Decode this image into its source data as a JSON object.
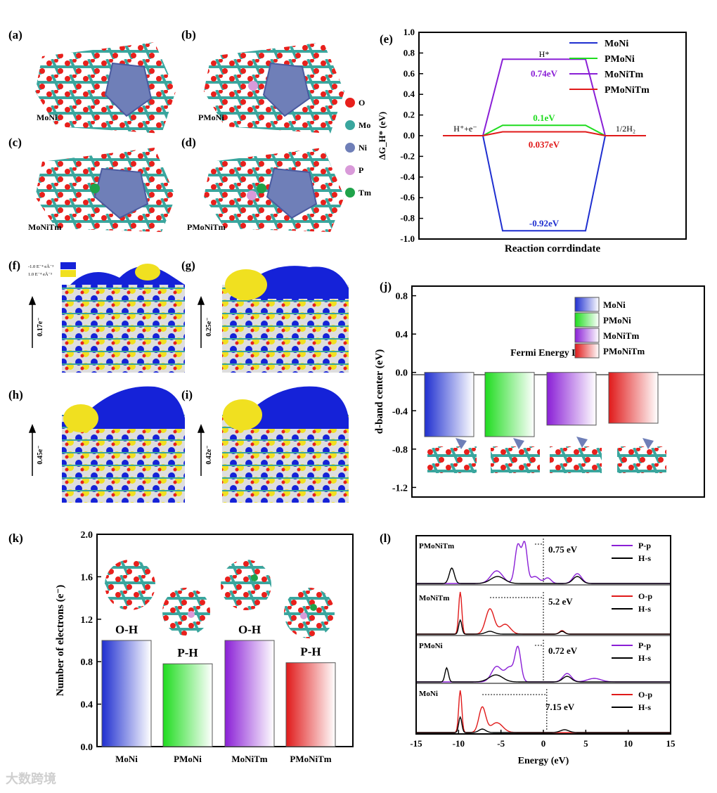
{
  "panels": {
    "a": {
      "label": "(a)",
      "name": "MoNi"
    },
    "b": {
      "label": "(b)",
      "name": "PMoNi"
    },
    "c": {
      "label": "(c)",
      "name": "MoNiTm"
    },
    "d": {
      "label": "(d)",
      "name": "PMoNiTm"
    },
    "f": {
      "label": "(f)",
      "charge": "0.17e⁻"
    },
    "g": {
      "label": "(g)",
      "charge": "0.25e⁻"
    },
    "h": {
      "label": "(h)",
      "charge": "0.45e⁻"
    },
    "i": {
      "label": "(i)",
      "charge": "0.42e⁻"
    }
  },
  "f_legend": {
    "neg": "-1.0 E⁻⁴ eÅ⁻³",
    "pos": "1.0 E⁻⁴ eÅ⁻³"
  },
  "atom_legend": [
    {
      "label": "O",
      "color": "#e8201c"
    },
    {
      "label": "Mo",
      "color": "#3aa69e"
    },
    {
      "label": "Ni",
      "color": "#6f7fb8"
    },
    {
      "label": "P",
      "color": "#d99ad9"
    },
    {
      "label": "Tm",
      "color": "#1fa34a"
    }
  ],
  "colors": {
    "MoNi": "#1f2fd0",
    "PMoNi": "#1fdc1f",
    "MoNiTm": "#8a1fd6",
    "PMoNiTm": "#e01a1a"
  },
  "chart_data": [
    {
      "panel": "(e)",
      "type": "line",
      "xlabel": "Reaction corrdindate",
      "ylabel": "ΔG_H* (eV)",
      "ylim": [
        -1.0,
        1.0
      ],
      "yticks": [
        "1.0",
        "0.8",
        "0.6",
        "0.4",
        "0.2",
        "0.0",
        "-0.2",
        "-0.4",
        "-0.6",
        "-0.8",
        "-1.0"
      ],
      "state_labels": {
        "left": "H⁺+e⁻",
        "mid": "H*",
        "right": "1/2H₂"
      },
      "series": [
        {
          "name": "MoNi",
          "values": [
            0,
            -0.92,
            0
          ],
          "label": "-0.92eV"
        },
        {
          "name": "PMoNi",
          "values": [
            0,
            0.1,
            0
          ],
          "label": "0.1eV"
        },
        {
          "name": "MoNiTm",
          "values": [
            0,
            0.74,
            0
          ],
          "label": "0.74eV"
        },
        {
          "name": "PMoNiTm",
          "values": [
            0,
            0.037,
            0
          ],
          "label": "0.037eV"
        }
      ]
    },
    {
      "panel": "(j)",
      "type": "bar",
      "ylabel": "d-band center (eV)",
      "ylim": [
        -1.3,
        0.9
      ],
      "yticks": [
        "0.8",
        "0.4",
        "0.0",
        "-0.4",
        "-0.8",
        "-1.2"
      ],
      "annotation": "Fermi Energy Level",
      "categories": [
        "MoNi",
        "PMoNi",
        "MoNiTm",
        "PMoNiTm"
      ],
      "values": [
        -0.67,
        -0.67,
        -0.55,
        -0.53
      ]
    },
    {
      "panel": "(k)",
      "type": "bar",
      "ylabel": "Number of electrons (e⁻)",
      "ylim": [
        0,
        2.0
      ],
      "yticks": [
        "0.0",
        "0.4",
        "0.8",
        "1.2",
        "1.6",
        "2.0"
      ],
      "categories": [
        "MoNi",
        "PMoNi",
        "MoNiTm",
        "PMoNiTm"
      ],
      "bond_labels": [
        "O-H",
        "P-H",
        "O-H",
        "P-H"
      ],
      "values": [
        1.0,
        0.78,
        1.0,
        0.79
      ]
    },
    {
      "panel": "(l)",
      "type": "line",
      "xlabel": "Energy (eV)",
      "xlim": [
        -15,
        15
      ],
      "xticks": [
        "-15",
        "-10",
        "-5",
        "0",
        "5",
        "10",
        "15"
      ],
      "subplots": [
        {
          "name": "PMoNiTm",
          "gap": "0.75 eV",
          "legend": [
            "P-p",
            "H-s"
          ]
        },
        {
          "name": "MoNiTm",
          "gap": "5.2 eV",
          "legend": [
            "O-p",
            "H-s"
          ]
        },
        {
          "name": "PMoNi",
          "gap": "0.72 eV",
          "legend": [
            "P-p",
            "H-s"
          ]
        },
        {
          "name": "MoNi",
          "gap": "7.15 eV",
          "legend": [
            "O-p",
            "H-s"
          ]
        }
      ]
    }
  ],
  "watermark": "大数跨境"
}
